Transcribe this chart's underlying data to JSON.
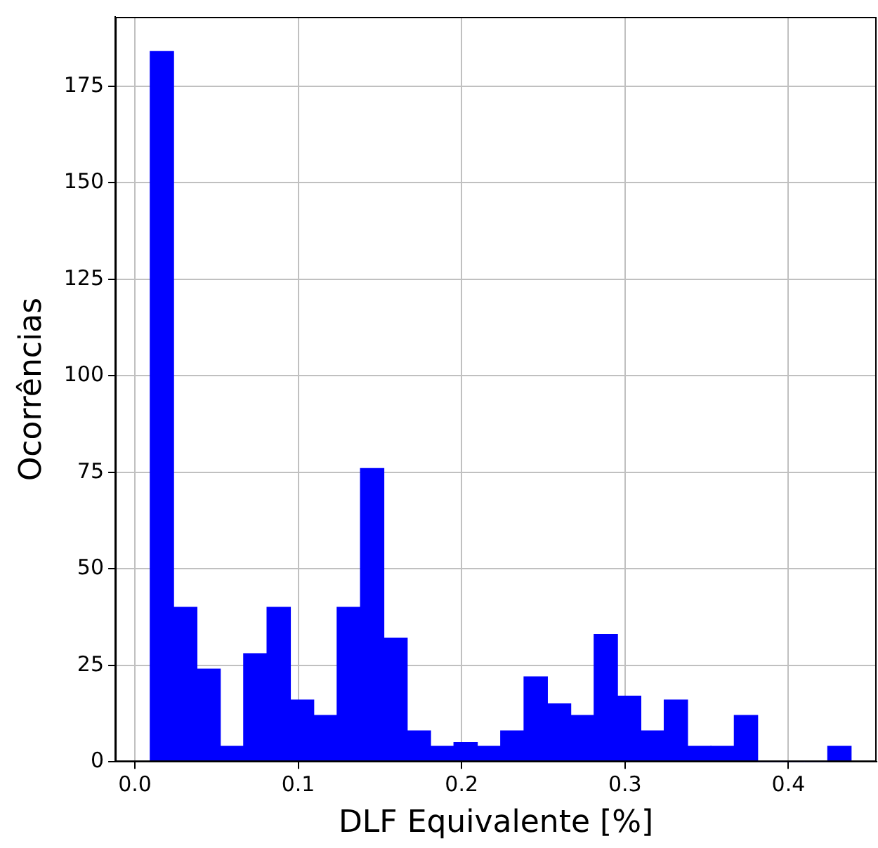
{
  "chart_data": {
    "type": "histogram",
    "xlabel": "DLF Equivalente [%]",
    "ylabel": "Ocorrências",
    "bins": [
      0.0094,
      0.0237,
      0.038,
      0.0523,
      0.0666,
      0.0809,
      0.0952,
      0.1095,
      0.1238,
      0.1381,
      0.1524,
      0.1667,
      0.181,
      0.1953,
      0.2096,
      0.2239,
      0.2382,
      0.2525,
      0.2668,
      0.2811,
      0.2954,
      0.3097,
      0.324,
      0.3383,
      0.3526,
      0.3669,
      0.3812,
      0.3955,
      0.4098,
      0.4241,
      0.4384
    ],
    "values": [
      184,
      40,
      24,
      4,
      28,
      40,
      16,
      12,
      40,
      76,
      32,
      8,
      4,
      5,
      4,
      8,
      22,
      15,
      12,
      33,
      17,
      8,
      16,
      4,
      4,
      12,
      0,
      0,
      0,
      4
    ],
    "color": "#0000ff",
    "xlim": [
      -0.012,
      0.454
    ],
    "ylim": [
      0,
      193
    ],
    "xticks": [
      {
        "value": 0,
        "label": "0.0"
      },
      0.1,
      0.2,
      0.3,
      0.4
    ],
    "yticks": [
      0,
      25,
      50,
      75,
      100,
      125,
      150,
      175
    ],
    "grid": true
  }
}
